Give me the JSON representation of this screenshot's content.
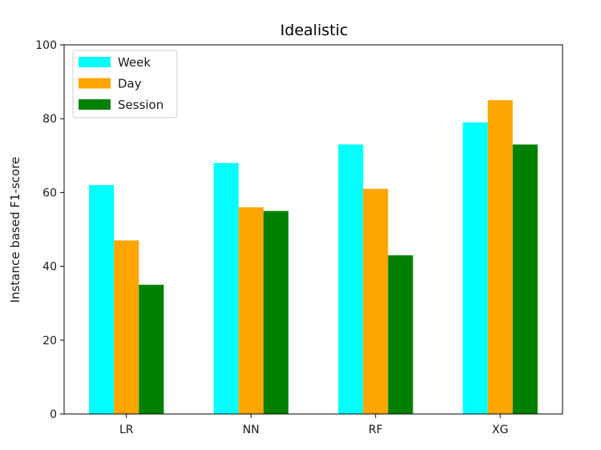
{
  "chart_data": {
    "type": "bar",
    "title": "Idealistic",
    "xlabel": "",
    "ylabel": "Instance based F1-score",
    "categories": [
      "LR",
      "NN",
      "RF",
      "XG"
    ],
    "series": [
      {
        "name": "Week",
        "values": [
          62,
          68,
          73,
          79
        ],
        "color": "#00ffff"
      },
      {
        "name": "Day",
        "values": [
          47,
          56,
          61,
          85
        ],
        "color": "#ffa500"
      },
      {
        "name": "Session",
        "values": [
          35,
          55,
          43,
          73
        ],
        "color": "#008000"
      }
    ],
    "ylim": [
      0,
      100
    ],
    "yticks": [
      0,
      20,
      40,
      60,
      80,
      100
    ],
    "grid": false,
    "legend_position": "top-left"
  }
}
